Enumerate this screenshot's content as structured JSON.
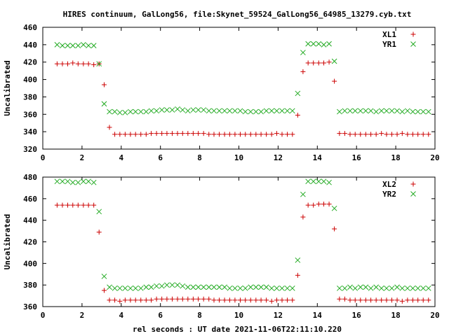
{
  "title": "HIRES continuum, GalLong56, file:Skynet_59524_GalLong56_64985_13279.cyb.txt",
  "xlabel": "rel seconds : UT date 2021-11-06T22:11:10.220",
  "colors": {
    "red": "#cc0000",
    "green": "#22aa22"
  },
  "chart_data": [
    {
      "type": "scatter",
      "ylabel": "Uncalibrated",
      "xlim": [
        0,
        20
      ],
      "ylim": [
        320,
        460
      ],
      "xticks": [
        0,
        2,
        4,
        6,
        8,
        10,
        12,
        14,
        16,
        18,
        20
      ],
      "yticks": [
        320,
        340,
        360,
        380,
        400,
        420,
        440,
        460
      ],
      "legend_position": "top-right",
      "series": [
        {
          "name": "XL1",
          "marker": "plus",
          "color": "#cc0000",
          "x": [
            0.73,
            1.0,
            1.27,
            1.53,
            1.8,
            2.07,
            2.33,
            2.6,
            2.87,
            3.13,
            3.4,
            3.67,
            3.93,
            4.2,
            4.47,
            4.73,
            5.0,
            5.27,
            5.53,
            5.8,
            6.07,
            6.33,
            6.6,
            6.87,
            7.13,
            7.4,
            7.67,
            7.93,
            8.2,
            8.47,
            8.73,
            9.0,
            9.27,
            9.53,
            9.8,
            10.07,
            10.33,
            10.6,
            10.87,
            11.13,
            11.4,
            11.67,
            11.93,
            12.2,
            12.47,
            12.73,
            13.0,
            13.27,
            13.53,
            13.8,
            14.07,
            14.33,
            14.6,
            14.87,
            15.13,
            15.4,
            15.67,
            15.93,
            16.2,
            16.47,
            16.73,
            17.0,
            17.27,
            17.53,
            17.8,
            18.07,
            18.33,
            18.6,
            18.87,
            19.13,
            19.4,
            19.67
          ],
          "y": [
            418,
            418,
            418,
            419,
            418,
            418,
            418,
            417,
            418,
            394,
            345,
            337,
            337,
            337,
            337,
            337,
            337,
            337,
            338,
            338,
            338,
            338,
            338,
            338,
            338,
            338,
            338,
            338,
            338,
            337,
            337,
            337,
            337,
            337,
            337,
            337,
            337,
            337,
            337,
            337,
            337,
            337,
            338,
            337,
            337,
            337,
            359,
            409,
            419,
            419,
            419,
            419,
            420,
            398,
            338,
            338,
            337,
            337,
            337,
            337,
            337,
            337,
            338,
            337,
            337,
            337,
            338,
            337,
            337,
            337,
            337,
            337
          ]
        },
        {
          "name": "YR1",
          "marker": "cross",
          "color": "#22aa22",
          "x": [
            0.73,
            1.0,
            1.27,
            1.53,
            1.8,
            2.07,
            2.33,
            2.6,
            2.87,
            3.13,
            3.4,
            3.67,
            3.93,
            4.2,
            4.47,
            4.73,
            5.0,
            5.27,
            5.53,
            5.8,
            6.07,
            6.33,
            6.6,
            6.87,
            7.13,
            7.4,
            7.67,
            7.93,
            8.2,
            8.47,
            8.73,
            9.0,
            9.27,
            9.53,
            9.8,
            10.07,
            10.33,
            10.6,
            10.87,
            11.13,
            11.4,
            11.67,
            11.93,
            12.2,
            12.47,
            12.73,
            13.0,
            13.27,
            13.53,
            13.8,
            14.07,
            14.33,
            14.6,
            14.87,
            15.13,
            15.4,
            15.67,
            15.93,
            16.2,
            16.47,
            16.73,
            17.0,
            17.27,
            17.53,
            17.8,
            18.07,
            18.33,
            18.6,
            18.87,
            19.13,
            19.4,
            19.67
          ],
          "y": [
            440,
            439,
            439,
            439,
            439,
            440,
            439,
            439,
            418,
            372,
            363,
            363,
            362,
            362,
            363,
            363,
            363,
            363,
            364,
            364,
            365,
            365,
            365,
            366,
            365,
            364,
            365,
            365,
            365,
            364,
            364,
            364,
            364,
            364,
            364,
            364,
            363,
            363,
            363,
            363,
            364,
            364,
            364,
            364,
            364,
            364,
            384,
            431,
            441,
            441,
            441,
            440,
            441,
            421,
            363,
            364,
            364,
            364,
            364,
            364,
            364,
            363,
            364,
            364,
            364,
            364,
            363,
            364,
            363,
            363,
            363,
            363
          ]
        }
      ]
    },
    {
      "type": "scatter",
      "ylabel": "Uncalibrated",
      "xlim": [
        0,
        20
      ],
      "ylim": [
        360,
        480
      ],
      "xticks": [
        0,
        2,
        4,
        6,
        8,
        10,
        12,
        14,
        16,
        18,
        20
      ],
      "yticks": [
        360,
        380,
        400,
        420,
        440,
        460,
        480
      ],
      "legend_position": "top-right",
      "series": [
        {
          "name": "XL2",
          "marker": "plus",
          "color": "#cc0000",
          "x": [
            0.73,
            1.0,
            1.27,
            1.53,
            1.8,
            2.07,
            2.33,
            2.6,
            2.87,
            3.13,
            3.4,
            3.67,
            3.93,
            4.2,
            4.47,
            4.73,
            5.0,
            5.27,
            5.53,
            5.8,
            6.07,
            6.33,
            6.6,
            6.87,
            7.13,
            7.4,
            7.67,
            7.93,
            8.2,
            8.47,
            8.73,
            9.0,
            9.27,
            9.53,
            9.8,
            10.07,
            10.33,
            10.6,
            10.87,
            11.13,
            11.4,
            11.67,
            11.93,
            12.2,
            12.47,
            12.73,
            13.0,
            13.27,
            13.53,
            13.8,
            14.07,
            14.33,
            14.6,
            14.87,
            15.13,
            15.4,
            15.67,
            15.93,
            16.2,
            16.47,
            16.73,
            17.0,
            17.27,
            17.53,
            17.8,
            18.07,
            18.33,
            18.6,
            18.87,
            19.13,
            19.4,
            19.67
          ],
          "y": [
            454,
            454,
            454,
            454,
            454,
            454,
            454,
            454,
            429,
            375,
            366,
            366,
            365,
            366,
            366,
            366,
            366,
            366,
            366,
            367,
            367,
            367,
            367,
            367,
            367,
            367,
            367,
            367,
            367,
            367,
            366,
            366,
            366,
            366,
            366,
            366,
            366,
            366,
            366,
            366,
            366,
            365,
            366,
            366,
            366,
            366,
            389,
            443,
            454,
            454,
            455,
            455,
            455,
            432,
            367,
            367,
            366,
            366,
            366,
            366,
            366,
            366,
            366,
            366,
            366,
            366,
            365,
            366,
            366,
            366,
            366,
            366
          ]
        },
        {
          "name": "YR2",
          "marker": "cross",
          "color": "#22aa22",
          "x": [
            0.73,
            1.0,
            1.27,
            1.53,
            1.8,
            2.07,
            2.33,
            2.6,
            2.87,
            3.13,
            3.4,
            3.67,
            3.93,
            4.2,
            4.47,
            4.73,
            5.0,
            5.27,
            5.53,
            5.8,
            6.07,
            6.33,
            6.6,
            6.87,
            7.13,
            7.4,
            7.67,
            7.93,
            8.2,
            8.47,
            8.73,
            9.0,
            9.27,
            9.53,
            9.8,
            10.07,
            10.33,
            10.6,
            10.87,
            11.13,
            11.4,
            11.67,
            11.93,
            12.2,
            12.47,
            12.73,
            13.0,
            13.27,
            13.53,
            13.8,
            14.07,
            14.33,
            14.6,
            14.87,
            15.13,
            15.4,
            15.67,
            15.93,
            16.2,
            16.47,
            16.73,
            17.0,
            17.27,
            17.53,
            17.8,
            18.07,
            18.33,
            18.6,
            18.87,
            19.13,
            19.4,
            19.67
          ],
          "y": [
            476,
            476,
            476,
            475,
            475,
            476,
            476,
            475,
            448,
            388,
            378,
            377,
            377,
            377,
            377,
            377,
            377,
            378,
            378,
            379,
            379,
            380,
            380,
            380,
            379,
            378,
            378,
            378,
            378,
            378,
            378,
            378,
            378,
            377,
            377,
            377,
            377,
            378,
            378,
            378,
            378,
            377,
            377,
            377,
            377,
            377,
            403,
            464,
            476,
            476,
            476,
            476,
            475,
            451,
            377,
            377,
            378,
            377,
            378,
            378,
            377,
            378,
            377,
            377,
            377,
            378,
            377,
            377,
            377,
            377,
            377,
            377
          ]
        }
      ]
    }
  ]
}
